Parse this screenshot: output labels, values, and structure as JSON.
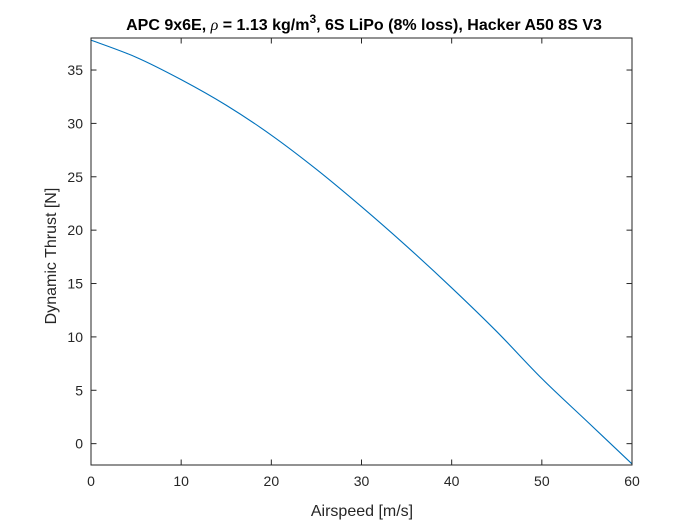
{
  "chart_data": {
    "type": "line",
    "title_parts": {
      "lead": "APC 9x6E, ",
      "symbol": "ρ",
      "middle": " = 1.13 kg/m",
      "superscript": "3",
      "tail": ", 6S LiPo (8% loss), Hacker A50 8S V3"
    },
    "xlabel": "Airspeed [m/s]",
    "ylabel": "Dynamic Thrust [N]",
    "xlim": [
      0,
      60
    ],
    "ylim": [
      -2,
      38
    ],
    "xticks": [
      0,
      10,
      20,
      30,
      40,
      50,
      60
    ],
    "yticks": [
      0,
      5,
      10,
      15,
      20,
      25,
      30,
      35
    ],
    "xtick_labels": [
      "0",
      "10",
      "20",
      "30",
      "40",
      "50",
      "60"
    ],
    "ytick_labels": [
      "0",
      "5",
      "10",
      "15",
      "20",
      "25",
      "30",
      "35"
    ],
    "grid": false,
    "box": true,
    "series": [
      {
        "color": "#0072BD",
        "x": [
          0,
          5,
          10,
          15,
          20,
          25,
          30,
          35,
          40,
          45,
          50,
          55,
          60
        ],
        "y": [
          37.8,
          36.2,
          34.1,
          31.7,
          28.9,
          25.7,
          22.2,
          18.5,
          14.6,
          10.5,
          6.1,
          2.1,
          -1.9
        ]
      }
    ]
  }
}
